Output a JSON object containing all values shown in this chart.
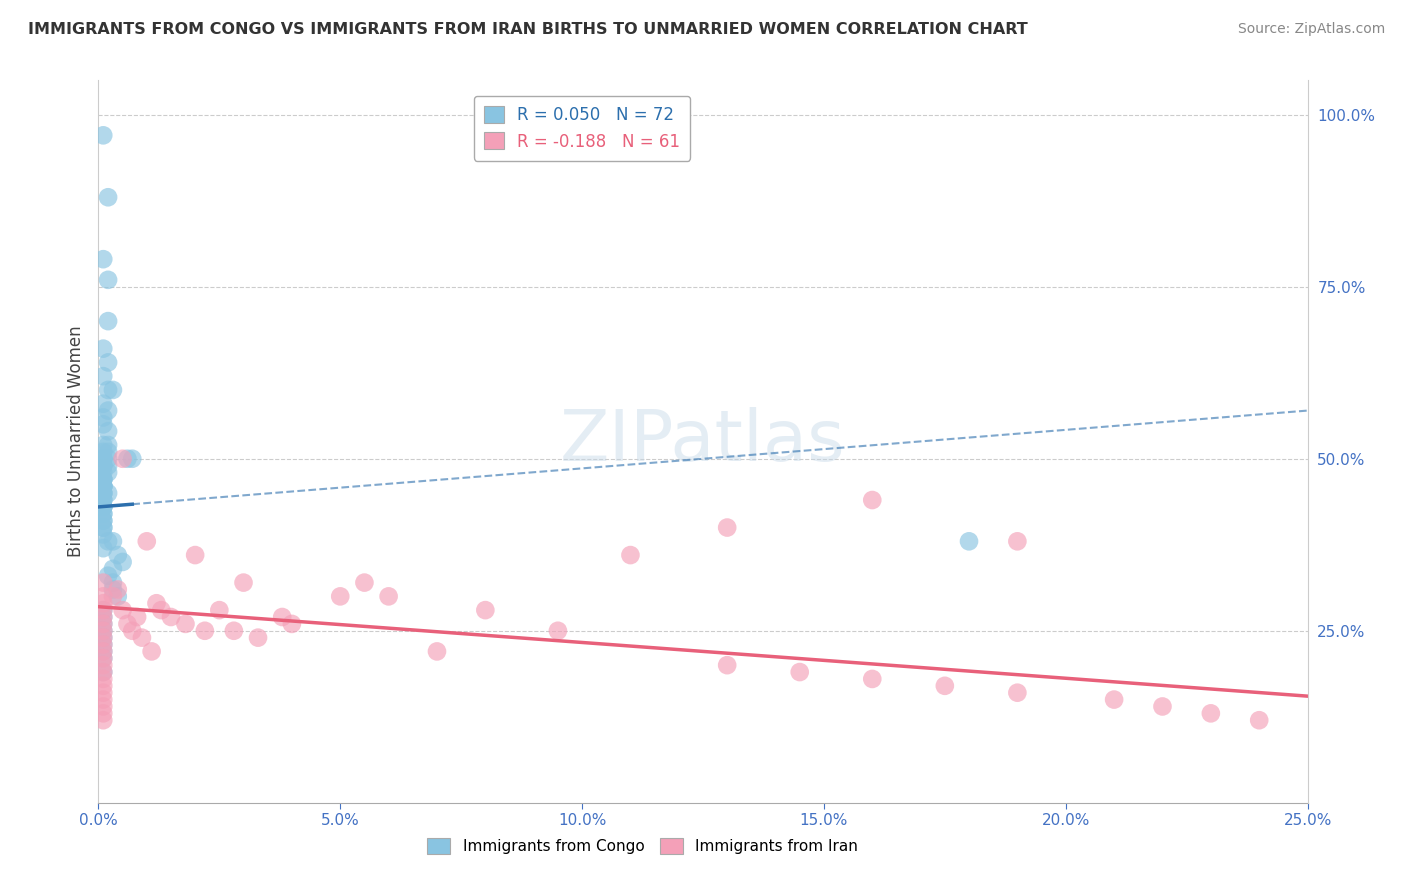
{
  "title": "IMMIGRANTS FROM CONGO VS IMMIGRANTS FROM IRAN BIRTHS TO UNMARRIED WOMEN CORRELATION CHART",
  "source": "Source: ZipAtlas.com",
  "ylabel": "Births to Unmarried Women",
  "right_yticks": [
    "100.0%",
    "75.0%",
    "50.0%",
    "25.0%"
  ],
  "right_ytick_vals": [
    1.0,
    0.75,
    0.5,
    0.25
  ],
  "legend1_r": "0.050",
  "legend1_n": "72",
  "legend2_r": "-0.188",
  "legend2_n": "61",
  "congo_color": "#89c4e1",
  "iran_color": "#f4a0b8",
  "congo_line_color": "#2c6fad",
  "iran_line_color": "#e8607a",
  "watermark": "ZIPatlas",
  "xlim": [
    0.0,
    0.25
  ],
  "ylim": [
    0.0,
    1.05
  ],
  "congo_x": [
    0.001,
    0.002,
    0.001,
    0.002,
    0.002,
    0.001,
    0.002,
    0.001,
    0.003,
    0.002,
    0.001,
    0.002,
    0.001,
    0.001,
    0.002,
    0.001,
    0.002,
    0.001,
    0.002,
    0.001,
    0.001,
    0.002,
    0.001,
    0.002,
    0.001,
    0.001,
    0.002,
    0.001,
    0.001,
    0.001,
    0.001,
    0.001,
    0.001,
    0.001,
    0.001,
    0.001,
    0.002,
    0.001,
    0.001,
    0.001,
    0.001,
    0.001,
    0.001,
    0.001,
    0.001,
    0.001,
    0.001,
    0.001,
    0.001,
    0.001,
    0.002,
    0.003,
    0.001,
    0.004,
    0.005,
    0.003,
    0.002,
    0.003,
    0.003,
    0.004,
    0.006,
    0.007,
    0.001,
    0.001,
    0.001,
    0.001,
    0.001,
    0.001,
    0.001,
    0.001,
    0.18,
    0.001
  ],
  "congo_y": [
    0.97,
    0.88,
    0.79,
    0.76,
    0.7,
    0.66,
    0.64,
    0.62,
    0.6,
    0.6,
    0.58,
    0.57,
    0.56,
    0.55,
    0.54,
    0.52,
    0.52,
    0.51,
    0.51,
    0.5,
    0.5,
    0.5,
    0.49,
    0.49,
    0.49,
    0.48,
    0.48,
    0.47,
    0.47,
    0.47,
    0.46,
    0.46,
    0.46,
    0.46,
    0.45,
    0.45,
    0.45,
    0.45,
    0.44,
    0.44,
    0.43,
    0.43,
    0.43,
    0.42,
    0.42,
    0.41,
    0.41,
    0.4,
    0.4,
    0.39,
    0.38,
    0.38,
    0.37,
    0.36,
    0.35,
    0.34,
    0.33,
    0.32,
    0.31,
    0.3,
    0.5,
    0.5,
    0.28,
    0.27,
    0.26,
    0.25,
    0.24,
    0.23,
    0.22,
    0.21,
    0.38,
    0.19
  ],
  "iran_x": [
    0.001,
    0.001,
    0.001,
    0.001,
    0.001,
    0.001,
    0.001,
    0.001,
    0.001,
    0.001,
    0.001,
    0.001,
    0.001,
    0.001,
    0.001,
    0.001,
    0.001,
    0.001,
    0.001,
    0.001,
    0.003,
    0.004,
    0.005,
    0.005,
    0.006,
    0.007,
    0.008,
    0.009,
    0.01,
    0.011,
    0.012,
    0.013,
    0.015,
    0.018,
    0.02,
    0.022,
    0.025,
    0.028,
    0.03,
    0.033,
    0.038,
    0.04,
    0.05,
    0.055,
    0.06,
    0.07,
    0.08,
    0.095,
    0.11,
    0.13,
    0.145,
    0.16,
    0.175,
    0.19,
    0.21,
    0.23,
    0.24,
    0.13,
    0.16,
    0.19,
    0.22
  ],
  "iran_y": [
    0.32,
    0.3,
    0.29,
    0.28,
    0.27,
    0.26,
    0.25,
    0.24,
    0.23,
    0.22,
    0.21,
    0.2,
    0.19,
    0.18,
    0.17,
    0.16,
    0.15,
    0.14,
    0.13,
    0.12,
    0.3,
    0.31,
    0.5,
    0.28,
    0.26,
    0.25,
    0.27,
    0.24,
    0.38,
    0.22,
    0.29,
    0.28,
    0.27,
    0.26,
    0.36,
    0.25,
    0.28,
    0.25,
    0.32,
    0.24,
    0.27,
    0.26,
    0.3,
    0.32,
    0.3,
    0.22,
    0.28,
    0.25,
    0.36,
    0.2,
    0.19,
    0.18,
    0.17,
    0.16,
    0.15,
    0.13,
    0.12,
    0.4,
    0.44,
    0.38,
    0.14
  ]
}
